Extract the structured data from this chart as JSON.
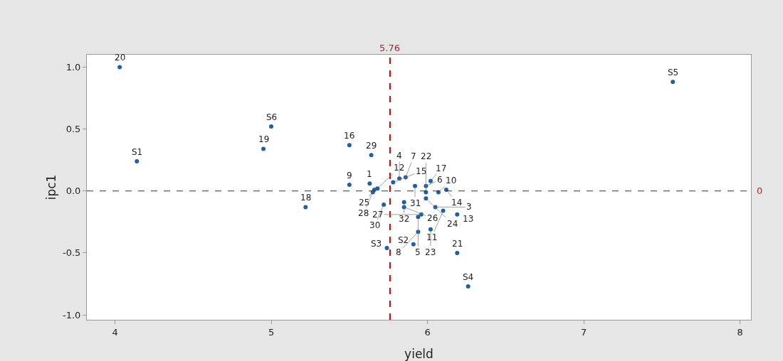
{
  "chart_data": {
    "type": "scatter",
    "xlabel": "yield",
    "ylabel": "ipc1",
    "xlim": [
      3.82,
      8.07
    ],
    "xticks": [
      4,
      5,
      6,
      7,
      8
    ],
    "ylim": [
      -1.04,
      1.1
    ],
    "yticks": [
      {
        "value": -1,
        "label": "-1.0"
      },
      {
        "value": -0.5,
        "label": "-0.5"
      },
      {
        "value": 0,
        "label": "0.0"
      },
      {
        "value": 0.5,
        "label": "0.5"
      },
      {
        "value": 1,
        "label": "1.0"
      }
    ],
    "grid": false,
    "marker": "circle",
    "x": [
      4.03,
      4.14,
      5.0,
      4.95,
      5.5,
      5.64,
      5.22,
      5.5,
      5.74,
      7.57,
      5.91,
      6.19,
      6.26,
      5.63,
      5.66,
      5.68,
      5.65,
      5.78,
      5.82,
      5.86,
      5.92,
      5.99,
      6.02,
      6.07,
      6.12,
      5.72,
      5.85,
      5.85,
      5.99,
      5.99,
      6.05,
      6.1,
      6.19,
      5.96,
      5.94,
      6.02,
      5.94
    ],
    "series": [
      {
        "color": "#1f5fa8",
        "values": [
          1.0,
          0.24,
          0.52,
          0.34,
          0.37,
          0.29,
          -0.13,
          0.05,
          -0.46,
          0.88,
          -0.43,
          -0.5,
          -0.77,
          0.06,
          0.01,
          0.02,
          -0.01,
          0.07,
          0.1,
          0.11,
          0.04,
          0.04,
          0.08,
          -0.01,
          0.01,
          -0.11,
          -0.09,
          -0.13,
          -0.06,
          -0.01,
          -0.13,
          -0.16,
          -0.19,
          -0.19,
          -0.21,
          -0.31,
          -0.33
        ]
      }
    ],
    "annotations": [
      {
        "text": "20",
        "x": 4.03,
        "y": 1.0
      },
      {
        "text": "S1",
        "x": 4.14,
        "y": 0.24
      },
      {
        "text": "S6",
        "x": 5.0,
        "y": 0.52
      },
      {
        "text": "19",
        "x": 4.95,
        "y": 0.34
      },
      {
        "text": "16",
        "x": 5.5,
        "y": 0.37
      },
      {
        "text": "29",
        "x": 5.64,
        "y": 0.29
      },
      {
        "text": "18",
        "x": 5.22,
        "y": -0.13
      },
      {
        "text": "9",
        "x": 5.5,
        "y": 0.05
      },
      {
        "text": "S3",
        "x": 5.74,
        "y": -0.46
      },
      {
        "text": "S5",
        "x": 7.57,
        "y": 0.88
      },
      {
        "text": "S2",
        "x": 5.91,
        "y": -0.43
      },
      {
        "text": "21",
        "x": 6.19,
        "y": -0.5
      },
      {
        "text": "S4",
        "x": 6.26,
        "y": -0.77
      },
      {
        "text": "1",
        "x": 5.63,
        "y": 0.06
      },
      {
        "text": "25",
        "x": 5.66,
        "y": 0.01
      },
      {
        "text": "12",
        "x": 5.68,
        "y": 0.02
      },
      {
        "text": "28",
        "x": 5.65,
        "y": -0.01
      },
      {
        "text": "15",
        "x": 5.78,
        "y": 0.07
      },
      {
        "text": "4",
        "x": 5.82,
        "y": 0.1
      },
      {
        "text": "7",
        "x": 5.86,
        "y": 0.11
      },
      {
        "text": "31",
        "x": 5.92,
        "y": 0.04
      },
      {
        "text": "6",
        "x": 5.99,
        "y": 0.04
      },
      {
        "text": "17",
        "x": 6.02,
        "y": 0.08
      },
      {
        "text": "10",
        "x": 6.07,
        "y": -0.01
      },
      {
        "text": "14",
        "x": 6.12,
        "y": 0.01
      },
      {
        "text": "30",
        "x": 5.72,
        "y": -0.11
      },
      {
        "text": "32",
        "x": 5.85,
        "y": -0.09
      },
      {
        "text": "26",
        "x": 5.85,
        "y": -0.13
      },
      {
        "text": "24",
        "x": 5.99,
        "y": -0.06
      },
      {
        "text": "22",
        "x": 5.99,
        "y": -0.01
      },
      {
        "text": "3",
        "x": 6.05,
        "y": -0.13
      },
      {
        "text": "11",
        "x": 6.1,
        "y": -0.16
      },
      {
        "text": "13",
        "x": 6.19,
        "y": -0.19
      },
      {
        "text": "27",
        "x": 5.96,
        "y": -0.19
      },
      {
        "text": "5",
        "x": 5.94,
        "y": -0.21
      },
      {
        "text": "23",
        "x": 6.02,
        "y": -0.31
      },
      {
        "text": "8",
        "x": 5.94,
        "y": -0.33
      }
    ],
    "ref_lines": [
      {
        "axis": "x",
        "value": 5.76,
        "label": "5.76",
        "color": "#cc0000",
        "line_style": "dashed"
      },
      {
        "axis": "y",
        "value": 0,
        "label": "0",
        "color": "#333333",
        "line_style": "dashed"
      }
    ]
  }
}
